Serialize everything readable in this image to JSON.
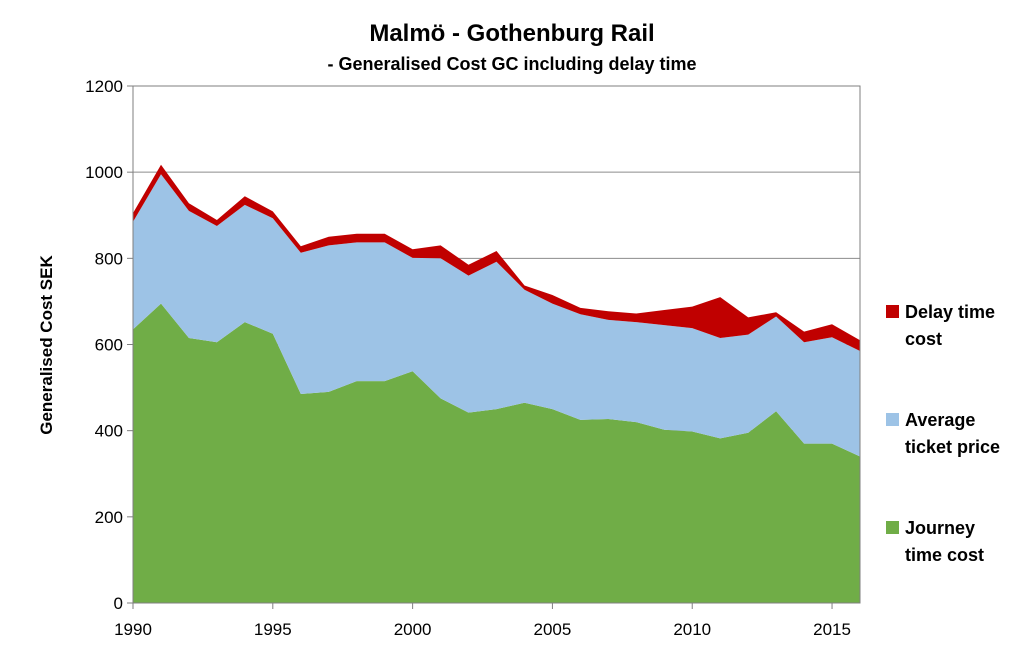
{
  "chart_data": {
    "type": "area",
    "stacked": true,
    "title": "Malmö - Gothenburg  Rail",
    "subtitle": "- Generalised Cost GC including delay time",
    "xlabel": "",
    "ylabel": "Generalised Cost  SEK",
    "ylim": [
      0,
      1200
    ],
    "yticks": [
      "0",
      "200",
      "400",
      "600",
      "800",
      "1000",
      "1200"
    ],
    "xlim": [
      1990,
      2016
    ],
    "xticks": [
      "1990",
      "1995",
      "2000",
      "2005",
      "2010",
      "2015"
    ],
    "grid": true,
    "legend_position": "right",
    "x": [
      1990,
      1991,
      1992,
      1993,
      1994,
      1995,
      1996,
      1997,
      1998,
      1999,
      2000,
      2001,
      2002,
      2003,
      2004,
      2005,
      2006,
      2007,
      2008,
      2009,
      2010,
      2011,
      2012,
      2013,
      2014,
      2015,
      2016
    ],
    "series": [
      {
        "name": "Journey time cost",
        "legend_lines": [
          "Journey",
          "time cost"
        ],
        "color": "#70AD47",
        "values": [
          635,
          695,
          615,
          605,
          652,
          625,
          485,
          490,
          515,
          515,
          538,
          475,
          442,
          450,
          465,
          450,
          425,
          427,
          420,
          402,
          398,
          382,
          395,
          445,
          370,
          370,
          340
        ]
      },
      {
        "name": "Average ticket price",
        "legend_lines": [
          "Average",
          "ticket price"
        ],
        "color": "#9DC3E6",
        "values": [
          250,
          300,
          295,
          270,
          272,
          268,
          328,
          340,
          322,
          322,
          263,
          325,
          318,
          342,
          262,
          245,
          245,
          230,
          232,
          243,
          240,
          233,
          228,
          220,
          235,
          247,
          245
        ]
      },
      {
        "name": "Delay time cost",
        "legend_lines": [
          "Delay time",
          "cost"
        ],
        "color": "#C00000",
        "values": [
          20,
          22,
          18,
          14,
          20,
          16,
          15,
          20,
          20,
          20,
          20,
          30,
          25,
          25,
          10,
          20,
          15,
          20,
          20,
          35,
          50,
          95,
          40,
          10,
          25,
          30,
          25
        ]
      }
    ]
  }
}
